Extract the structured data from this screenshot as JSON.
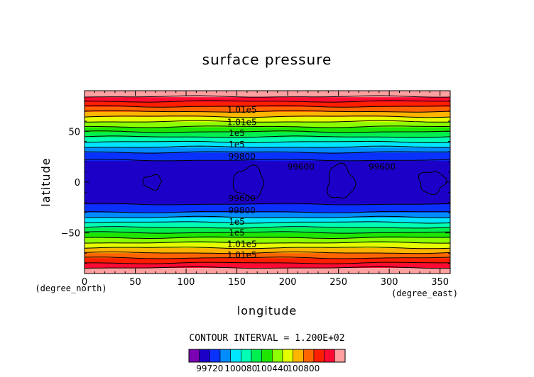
{
  "chart_data": {
    "type": "heatmap",
    "title": "surface pressure",
    "xlabel": "longitude",
    "ylabel": "latitude",
    "x_units": "(degree_east)",
    "y_units": "(degree_north)",
    "xlim": [
      0,
      360
    ],
    "ylim": [
      -90,
      90
    ],
    "x_ticks": [
      0,
      50,
      100,
      150,
      200,
      250,
      300,
      350
    ],
    "y_ticks": [
      -50,
      0,
      50
    ],
    "x_tick_labels": [
      "0",
      "50",
      "100",
      "150",
      "200",
      "250",
      "300",
      "350"
    ],
    "y_tick_labels": [
      "−50",
      "0",
      "50"
    ],
    "contour_interval_text": "CONTOUR INTERVAL = 1.200E+02",
    "contour_interval": 120,
    "levels": [
      99600,
      99720,
      99840,
      99960,
      100080,
      100200,
      100320,
      100440,
      100560,
      100680,
      100800,
      100920,
      101040,
      101160
    ],
    "colorbar_labels": [
      "99720",
      "100080",
      "100440",
      "100800"
    ],
    "colorbar_label_levels": [
      99720,
      100080,
      100440,
      100800
    ],
    "colors": [
      "#7a00b4",
      "#1c00c8",
      "#0a32ff",
      "#008cff",
      "#00e6ff",
      "#00ffb4",
      "#00f050",
      "#1ee600",
      "#8cff00",
      "#e6ff00",
      "#ffb400",
      "#ff6400",
      "#ff1e00",
      "#ff0a32",
      "#ffa0a0"
    ],
    "grid": false,
    "legend": "bottom",
    "zonal_profile": {
      "lat": [
        -90,
        -85,
        -80,
        -75,
        -70,
        -65,
        -60,
        -55,
        -50,
        -45,
        -40,
        -35,
        -30,
        -25,
        -20,
        -15,
        -10,
        -5,
        0,
        5,
        10,
        15,
        20,
        25,
        30,
        35,
        40,
        45,
        50,
        55,
        60,
        65,
        70,
        75,
        80,
        85,
        90
      ],
      "pressure": [
        101200,
        101180,
        101050,
        100930,
        100810,
        100690,
        100570,
        100450,
        100330,
        100210,
        100090,
        99970,
        99850,
        99760,
        99700,
        99690,
        99680,
        99690,
        99700,
        99690,
        99680,
        99690,
        99700,
        99760,
        99850,
        99970,
        100090,
        100210,
        100330,
        100450,
        100570,
        100690,
        100810,
        100930,
        101050,
        101180,
        101200
      ]
    },
    "contour_labels": [
      {
        "text": "1.01e5",
        "lon": 155,
        "lat": 71
      },
      {
        "text": "1.01e5",
        "lon": 155,
        "lat": 59
      },
      {
        "text": "1e5",
        "lon": 150,
        "lat": 48
      },
      {
        "text": "1e5",
        "lon": 150,
        "lat": 37
      },
      {
        "text": "99800",
        "lon": 155,
        "lat": 25
      },
      {
        "text": "99600",
        "lon": 213,
        "lat": 15
      },
      {
        "text": "99600",
        "lon": 293,
        "lat": 15
      },
      {
        "text": "99600",
        "lon": 155,
        "lat": -16
      },
      {
        "text": "99800",
        "lon": 155,
        "lat": -28
      },
      {
        "text": "1e5",
        "lon": 150,
        "lat": -39
      },
      {
        "text": "1e5",
        "lon": 150,
        "lat": -50
      },
      {
        "text": "1.01e5",
        "lon": 155,
        "lat": -61
      },
      {
        "text": "1.01e5",
        "lon": 155,
        "lat": -72
      }
    ],
    "low_pressure_cells": [
      {
        "lon": 67,
        "lat": 0,
        "rx": 9,
        "ry": 7
      },
      {
        "lon": 162,
        "lat": 0,
        "rx": 15,
        "ry": 15
      },
      {
        "lon": 252,
        "lat": 0,
        "rx": 13,
        "ry": 17
      },
      {
        "lon": 342,
        "lat": 0,
        "rx": 13,
        "ry": 11
      }
    ]
  }
}
